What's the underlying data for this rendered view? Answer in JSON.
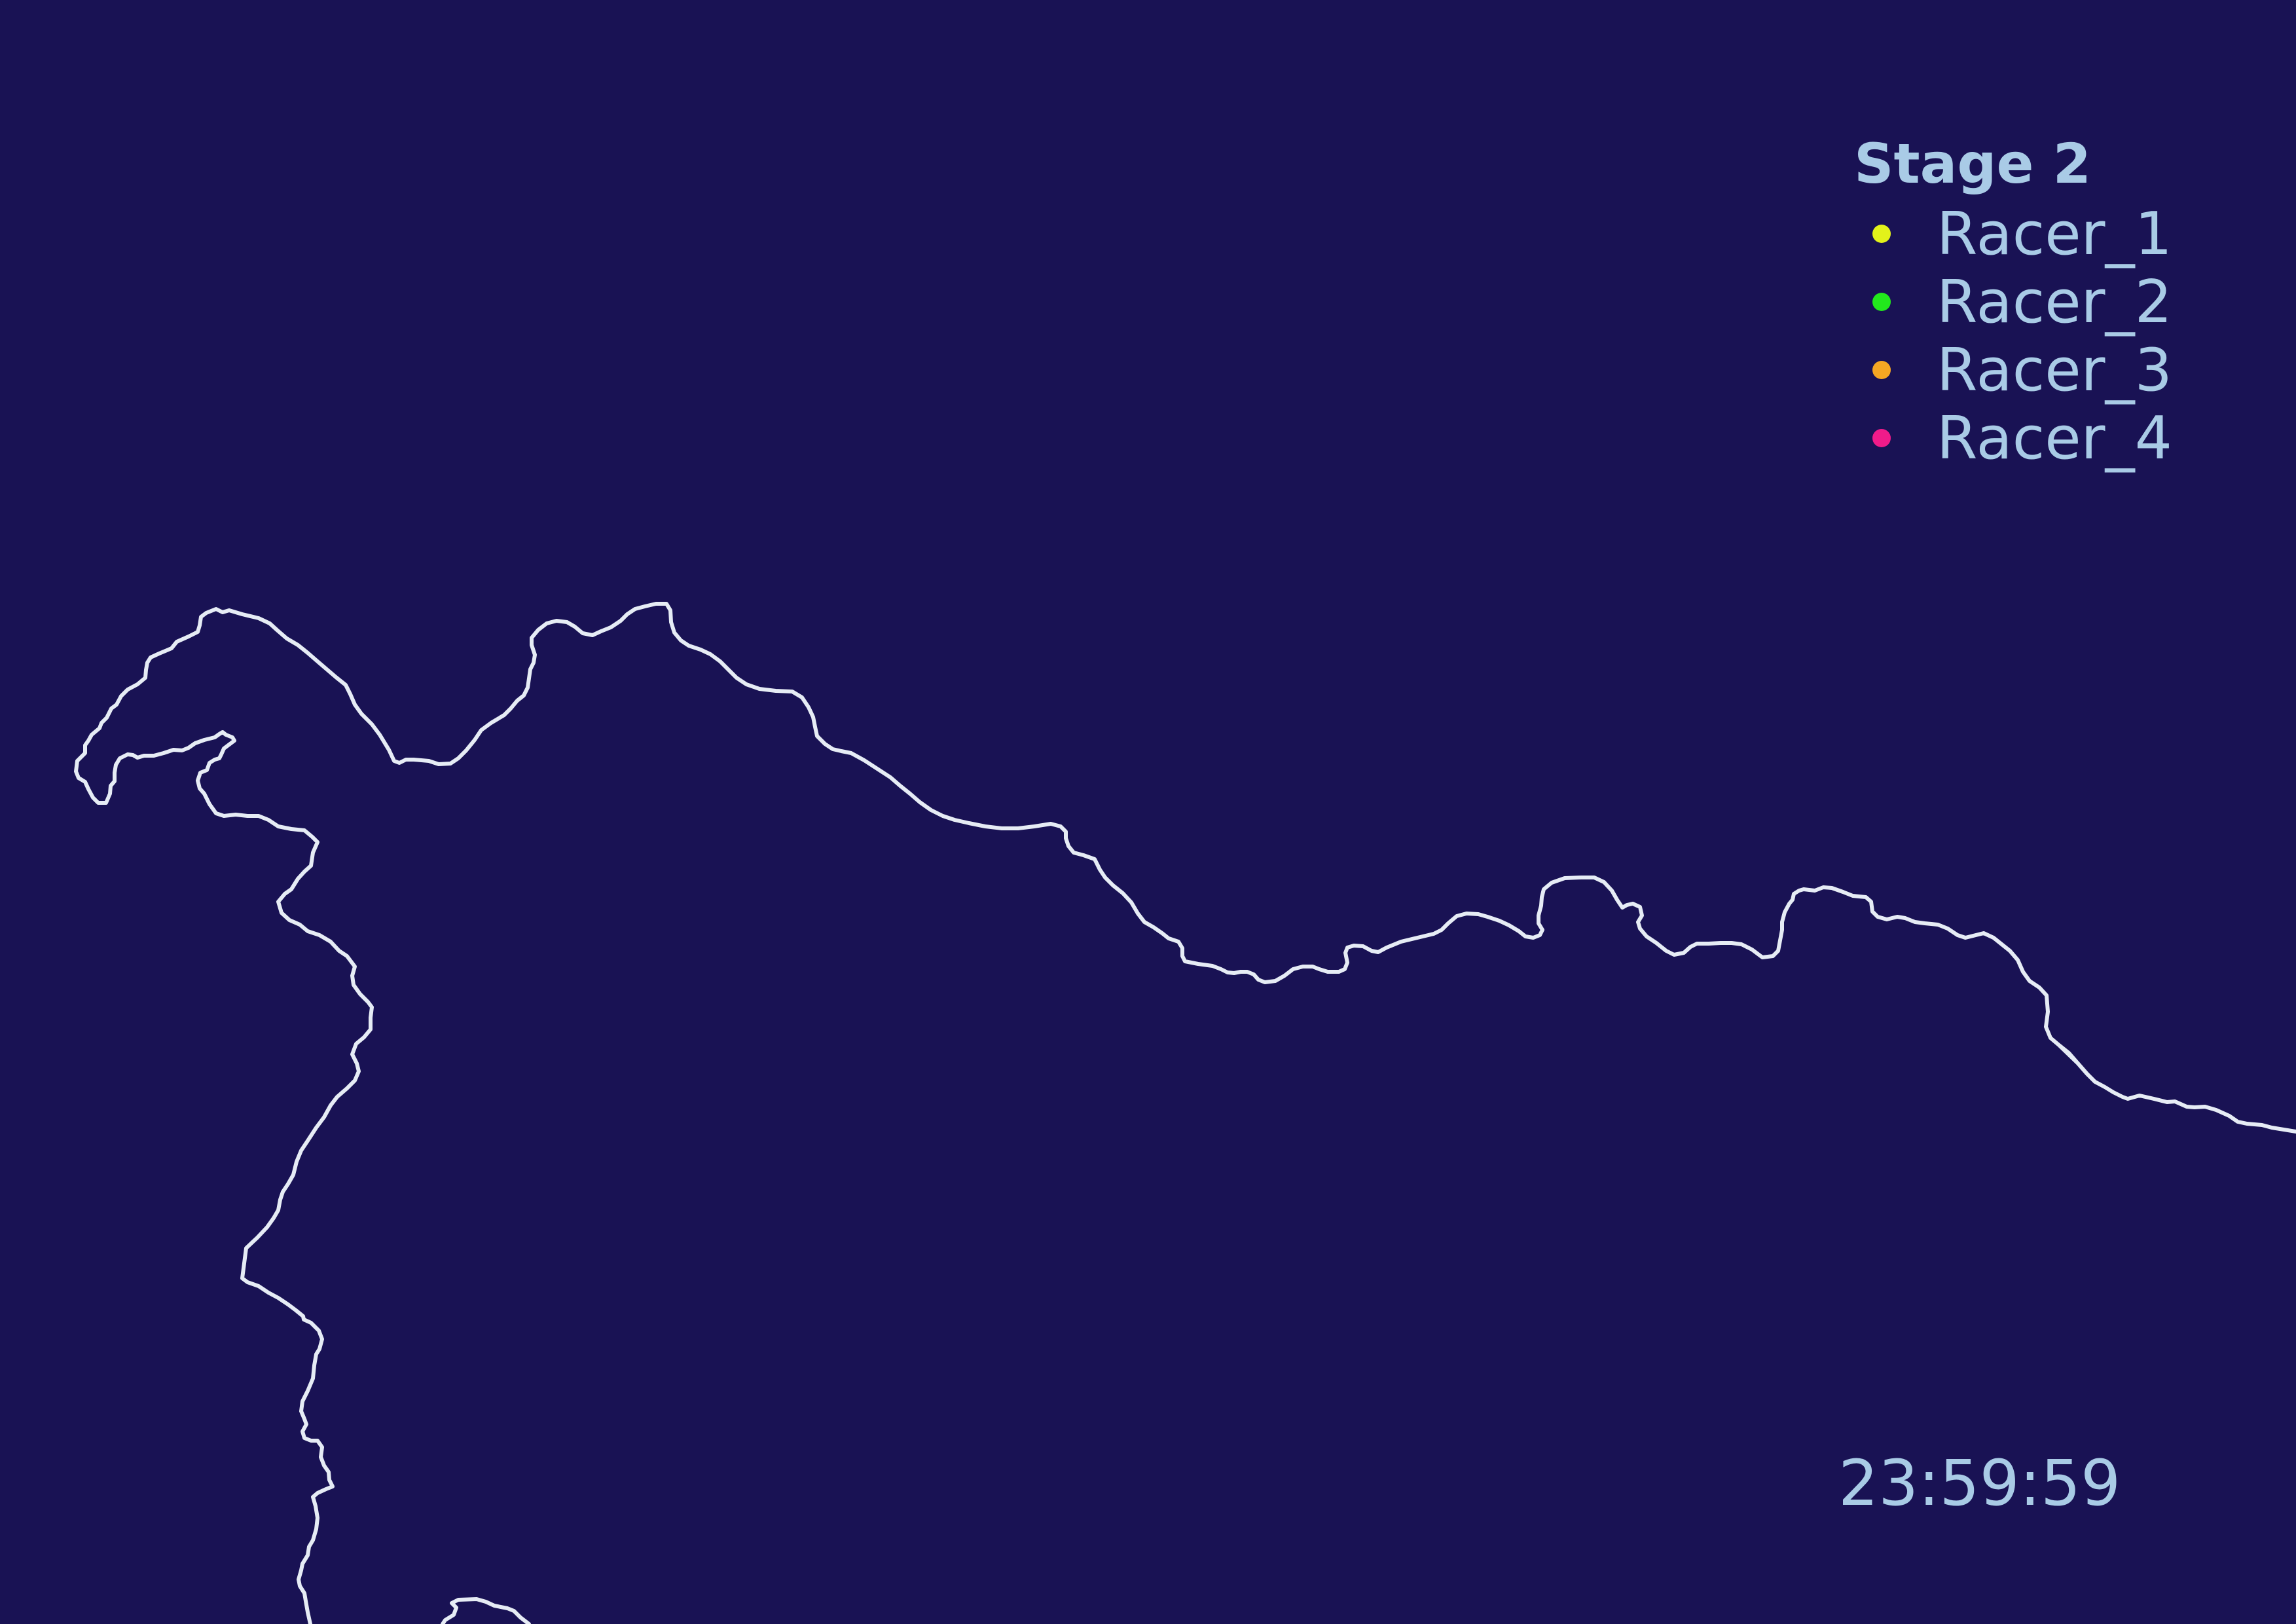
{
  "legend": {
    "title": "Stage 2",
    "racers": [
      {
        "name": "Racer_1",
        "color": "#e3f21a"
      },
      {
        "name": "Racer_2",
        "color": "#22e81c"
      },
      {
        "name": "Racer_3",
        "color": "#f5a623"
      },
      {
        "name": "Racer_4",
        "color": "#f01b8a"
      }
    ]
  },
  "clock": "23:59:59",
  "colors": {
    "background": "#191254",
    "route": "#e6ecf5",
    "text": "#a9cbe6"
  }
}
